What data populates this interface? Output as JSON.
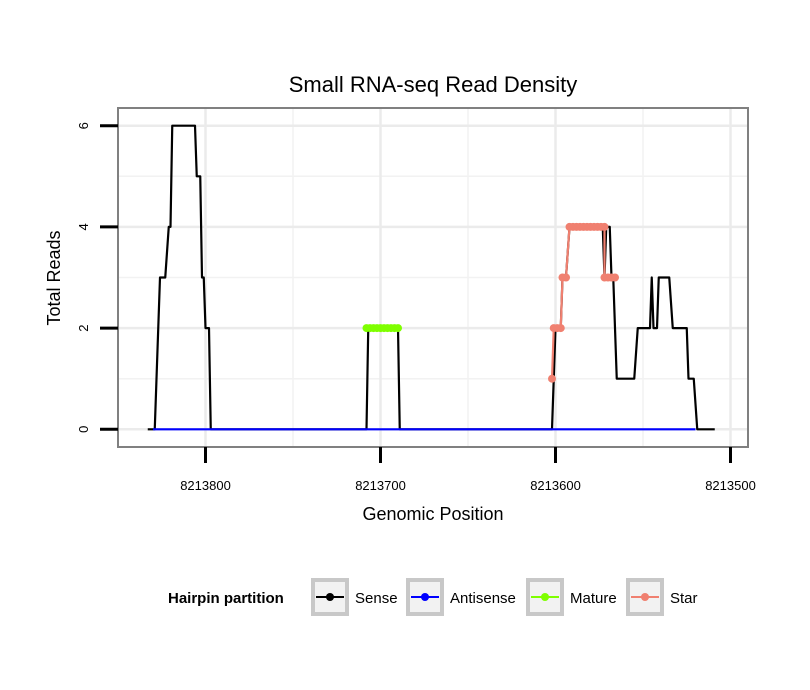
{
  "chart_data": {
    "type": "line",
    "title": "Small RNA-seq Read Density",
    "xlabel": "Genomic Position",
    "ylabel": "Total Reads",
    "x_reversed": true,
    "xlim": [
      8213850,
      8213490
    ],
    "ylim": [
      -0.35,
      6.35
    ],
    "x_ticks": [
      8213800,
      8213700,
      8213600,
      8213500
    ],
    "x_tick_labels": [
      "8213800",
      "8213700",
      "8213600",
      "8213500"
    ],
    "x_minor_gridlines": [
      8213750,
      8213650,
      8213550
    ],
    "y_ticks": [
      0,
      2,
      4,
      6
    ],
    "y_tick_labels": [
      "0",
      "2",
      "4",
      "6"
    ],
    "y_minor_gridlines": [
      1,
      3,
      5
    ],
    "grid": true,
    "legend": {
      "title": "Hairpin partition",
      "position": "bottom",
      "items": [
        {
          "label": "Sense",
          "color": "#000000"
        },
        {
          "label": "Antisense",
          "color": "#0000ff"
        },
        {
          "label": "Mature",
          "color": "#7fff00"
        },
        {
          "label": "Star",
          "color": "#f08070"
        }
      ]
    },
    "series": [
      {
        "name": "Sense",
        "color": "#000000",
        "points": [
          [
            8213833,
            0
          ],
          [
            8213829,
            0
          ],
          [
            8213826,
            3
          ],
          [
            8213823,
            3
          ],
          [
            8213821,
            4
          ],
          [
            8213820,
            4
          ],
          [
            8213819,
            6
          ],
          [
            8213806,
            6
          ],
          [
            8213805,
            5
          ],
          [
            8213803,
            5
          ],
          [
            8213802,
            3
          ],
          [
            8213801,
            3
          ],
          [
            8213800,
            2
          ],
          [
            8213798,
            2
          ],
          [
            8213797,
            0
          ],
          [
            8213708,
            0
          ],
          [
            8213707,
            2
          ],
          [
            8213690,
            2
          ],
          [
            8213689,
            0
          ],
          [
            8213602,
            0
          ],
          [
            8213600,
            2
          ],
          [
            8213597,
            2
          ],
          [
            8213596,
            3
          ],
          [
            8213594,
            3
          ],
          [
            8213592,
            4
          ],
          [
            8213573,
            4
          ],
          [
            8213572,
            3
          ],
          [
            8213571,
            4
          ],
          [
            8213569,
            4
          ],
          [
            8213568,
            3
          ],
          [
            8213567,
            3
          ],
          [
            8213565,
            1
          ],
          [
            8213555,
            1
          ],
          [
            8213553,
            2
          ],
          [
            8213546,
            2
          ],
          [
            8213545,
            3
          ],
          [
            8213544,
            2
          ],
          [
            8213542,
            2
          ],
          [
            8213541,
            3
          ],
          [
            8213535,
            3
          ],
          [
            8213533,
            2
          ],
          [
            8213525,
            2
          ],
          [
            8213524,
            1
          ],
          [
            8213521,
            1
          ],
          [
            8213519,
            0
          ],
          [
            8213509,
            0
          ]
        ]
      },
      {
        "name": "Antisense",
        "color": "#0000ff",
        "points": [
          [
            8213830,
            0
          ],
          [
            8213798,
            0
          ],
          [
            8213602,
            0
          ],
          [
            8213520,
            0
          ]
        ]
      },
      {
        "name": "Mature",
        "color": "#7fff00",
        "points": [
          [
            8213708,
            2
          ],
          [
            8213706,
            2
          ],
          [
            8213704,
            2
          ],
          [
            8213702,
            2
          ],
          [
            8213700,
            2
          ],
          [
            8213698,
            2
          ],
          [
            8213696,
            2
          ],
          [
            8213694,
            2
          ],
          [
            8213692,
            2
          ],
          [
            8213690,
            2
          ]
        ]
      },
      {
        "name": "Star",
        "color": "#f08070",
        "points": [
          [
            8213602,
            1
          ],
          [
            8213601,
            2
          ],
          [
            8213599,
            2
          ],
          [
            8213597,
            2
          ],
          [
            8213596,
            3
          ],
          [
            8213594,
            3
          ],
          [
            8213592,
            4
          ],
          [
            8213590,
            4
          ],
          [
            8213588,
            4
          ],
          [
            8213586,
            4
          ],
          [
            8213584,
            4
          ],
          [
            8213582,
            4
          ],
          [
            8213580,
            4
          ],
          [
            8213578,
            4
          ],
          [
            8213576,
            4
          ],
          [
            8213574,
            4
          ],
          [
            8213572,
            4
          ],
          [
            8213572,
            3
          ],
          [
            8213570,
            3
          ],
          [
            8213568,
            3
          ],
          [
            8213566,
            3
          ]
        ]
      }
    ]
  }
}
